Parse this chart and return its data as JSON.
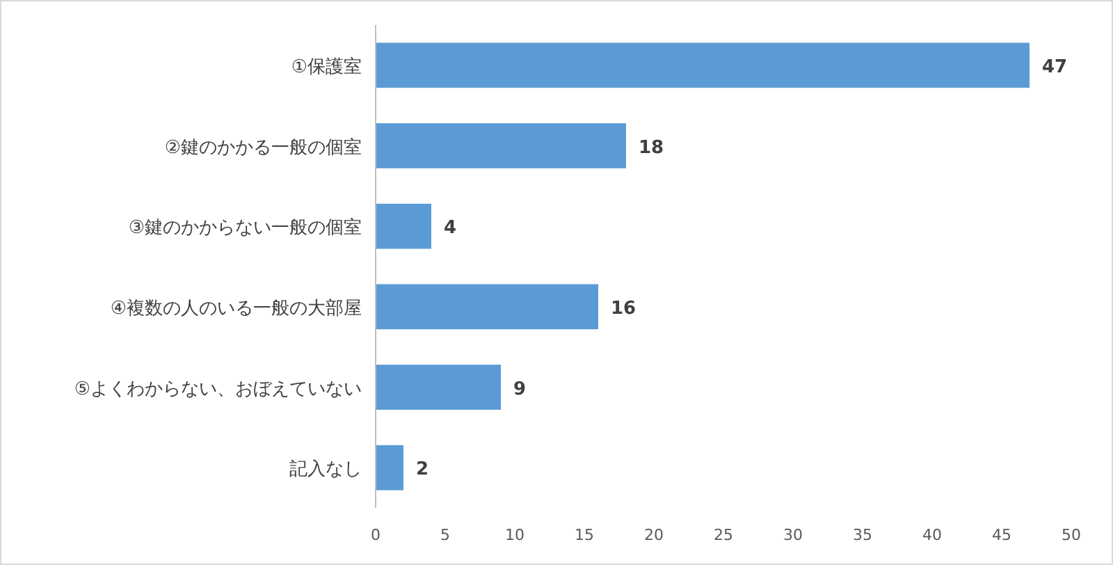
{
  "chart_data": {
    "type": "bar",
    "orientation": "horizontal",
    "categories": [
      "①保護室",
      "②鍵のかかる一般の個室",
      "③鍵のかからない一般の個室",
      "④複数の人のいる一般の大部屋",
      "⑤よくわからない、おぼえていない",
      "記入なし"
    ],
    "values": [
      47,
      18,
      4,
      16,
      9,
      2
    ],
    "color": "#5b9bd5",
    "xlim": [
      0,
      50
    ],
    "xticks": [
      0,
      5,
      10,
      15,
      20,
      25,
      30,
      35,
      40,
      45,
      50
    ],
    "data_labels": true
  }
}
